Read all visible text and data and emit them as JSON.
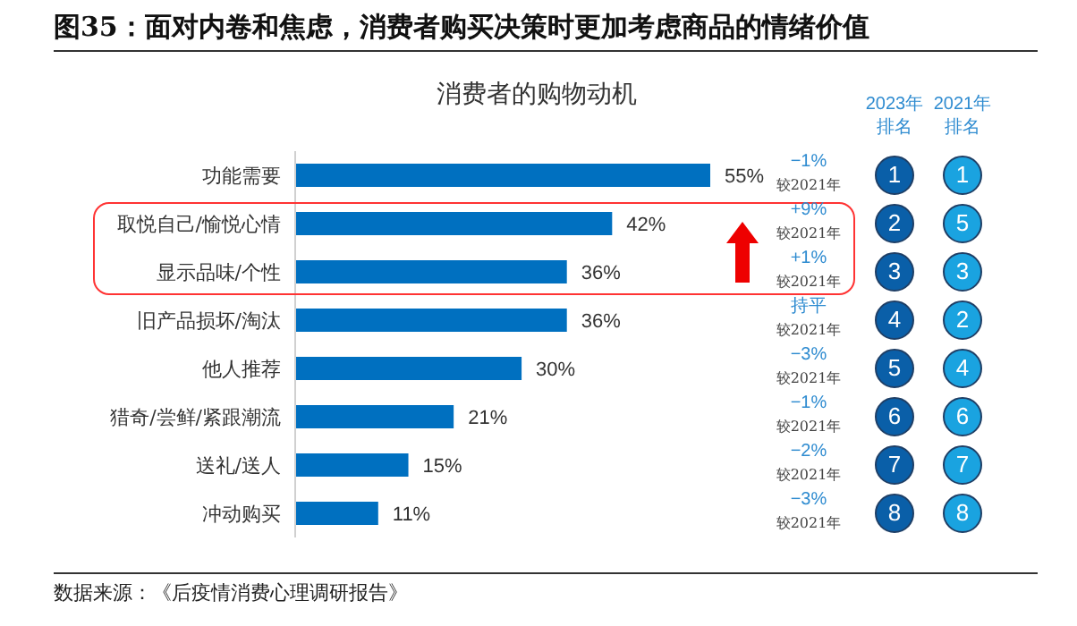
{
  "chart_data": {
    "type": "bar",
    "orientation": "horizontal",
    "title": "图35：面对内卷和焦虑，消费者购买决策时更加考虑商品的情绪价值",
    "subtitle": "消费者的购物动机",
    "categories": [
      "功能需要",
      "取悦自己/愉悦心情",
      "显示品味/个性",
      "旧产品损坏/淘汰",
      "他人推荐",
      "猎奇/尝鲜/紧跟潮流",
      "送礼/送人",
      "冲动购买"
    ],
    "values": [
      55,
      42,
      36,
      36,
      30,
      21,
      15,
      11
    ],
    "value_labels": [
      "55%",
      "42%",
      "36%",
      "36%",
      "30%",
      "21%",
      "15%",
      "11%"
    ],
    "color": "#0070c0",
    "tick_labels": "y",
    "annotations": [
      "2023年排名",
      "2021年排名",
      "−1%",
      "较2021年",
      "1",
      "1",
      "+9%",
      "较2021年",
      "2",
      "5",
      "+1%",
      "较2021年",
      "3",
      "3",
      "持平",
      "较2021年",
      "4",
      "2",
      "−3%",
      "较2021年",
      "5",
      "4",
      "−1%",
      "较2021年",
      "6",
      "6",
      "−2%",
      "较2021年",
      "7",
      "7",
      "−3%",
      "较2021年",
      "8",
      "8",
      "数据来源：《后疫情消费心理调研报告》"
    ]
  }
}
